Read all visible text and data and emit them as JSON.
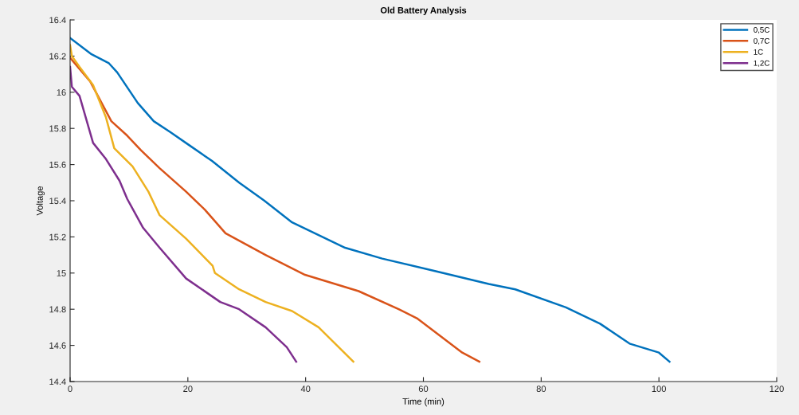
{
  "chart_data": {
    "type": "line",
    "title": "Old Battery Analysis",
    "xlabel": "Time (min)",
    "ylabel": "Voltage",
    "xlim": [
      0,
      120
    ],
    "xticks": [
      0,
      20,
      40,
      60,
      80,
      100,
      120
    ],
    "ylim": [
      14.4,
      16.4
    ],
    "yticks": [
      14.4,
      14.6,
      14.8,
      15,
      15.2,
      15.4,
      15.6,
      15.8,
      16,
      16.2,
      16.4
    ],
    "grid": false,
    "legend": "top right",
    "line_style": "solid",
    "marker": "none",
    "series": [
      {
        "name": "0,5C",
        "color": "#0072bd",
        "x": [
          0,
          3.65,
          6.6,
          8.0,
          11.5,
          14.2,
          17.0,
          20.1,
          24.1,
          28.7,
          33.0,
          37.7,
          46.7,
          53,
          62.1,
          71.1,
          75.6,
          84.2,
          90,
          95,
          100,
          101.8
        ],
        "values": [
          16.3,
          16.21,
          16.16,
          16.11,
          15.94,
          15.84,
          15.78,
          15.71,
          15.62,
          15.5,
          15.4,
          15.28,
          15.14,
          15.08,
          15.01,
          14.94,
          14.91,
          14.81,
          14.72,
          14.61,
          14.56,
          14.51
        ]
      },
      {
        "name": "0,7C",
        "color": "#d95319",
        "x": [
          0,
          2.1,
          3.4,
          7.0,
          9.7,
          12.0,
          15.2,
          19.7,
          22.9,
          26.4,
          33.2,
          39.9,
          49,
          55.8,
          58.9,
          66.6,
          69.5
        ],
        "values": [
          16.19,
          16.11,
          16.06,
          15.84,
          15.76,
          15.68,
          15.58,
          15.45,
          15.35,
          15.22,
          15.1,
          14.99,
          14.9,
          14.8,
          14.75,
          14.56,
          14.51
        ]
      },
      {
        "name": "1C",
        "color": "#edb120",
        "x": [
          0,
          0.3,
          1.6,
          3.9,
          6.1,
          7.5,
          10.6,
          13.3,
          15.2,
          19.7,
          24.2,
          24.6,
          28.7,
          33.2,
          37.7,
          42.2,
          48.1
        ],
        "values": [
          16.26,
          16.2,
          16.14,
          16.04,
          15.86,
          15.69,
          15.59,
          15.45,
          15.32,
          15.19,
          15.04,
          15.0,
          14.91,
          14.84,
          14.79,
          14.7,
          14.51
        ]
      },
      {
        "name": "1,2C",
        "color": "#7e2f8e",
        "x": [
          0,
          0.3,
          1.6,
          3.9,
          6.1,
          8.4,
          9.7,
          12.4,
          15.2,
          19.7,
          25.5,
          28.7,
          33.2,
          36.8,
          38.4
        ],
        "values": [
          16.14,
          16.03,
          15.98,
          15.72,
          15.63,
          15.51,
          15.41,
          15.25,
          15.14,
          14.97,
          14.84,
          14.8,
          14.7,
          14.59,
          14.51
        ]
      }
    ]
  }
}
